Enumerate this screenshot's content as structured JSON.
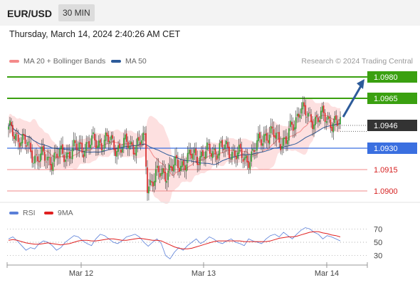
{
  "header": {
    "pair": "EUR/USD",
    "timeframe": "30 MIN"
  },
  "datetime": "Thursday, March 14, 2024 2:40:26 AM CET",
  "credit": "Research © 2024 Trading Central",
  "legend": [
    {
      "label": "MA 20 + Bollinger Bands",
      "color": "#f48a8a"
    },
    {
      "label": "MA 50",
      "color": "#2d5b9a"
    }
  ],
  "rsi_legend": [
    {
      "label": "RSI",
      "color": "#5a7fd8"
    },
    {
      "label": "9MA",
      "color": "#e02020"
    }
  ],
  "colors": {
    "up": "#2b9a2b",
    "down": "#d62020",
    "band": "#fde0e0",
    "ma20": "#f48a8a",
    "ma50": "#2d5b9a",
    "target": "#3aa010",
    "pivot": "#3a6fe0",
    "support": "#f08a8a",
    "current": "#333333",
    "arrow": "#2d5b9a"
  },
  "chart_data": [
    {
      "type": "candlestick",
      "title": "EUR/USD",
      "y_range": [
        1.0895,
        1.0984
      ],
      "x_labels": [
        "Mar 12",
        "Mar 13",
        "Mar 14"
      ],
      "levels": [
        {
          "value": 1.098,
          "label": "1.0980",
          "kind": "target"
        },
        {
          "value": 1.0965,
          "label": "1.0965",
          "kind": "target"
        },
        {
          "value": 1.0946,
          "label": "1.0946",
          "kind": "current"
        },
        {
          "value": 1.093,
          "label": "1.0930",
          "kind": "pivot"
        },
        {
          "value": 1.0915,
          "label": "1.0915",
          "kind": "support"
        },
        {
          "value": 1.09,
          "label": "1.0900",
          "kind": "support"
        }
      ],
      "anchors": [
        [
          0,
          1.0942
        ],
        [
          8,
          1.0938
        ],
        [
          18,
          1.0925
        ],
        [
          28,
          1.0922
        ],
        [
          38,
          1.0925
        ],
        [
          50,
          1.093
        ],
        [
          62,
          1.0934
        ],
        [
          72,
          1.0935
        ],
        [
          80,
          1.093
        ],
        [
          86,
          1.0933
        ],
        [
          92,
          1.0932
        ],
        [
          98,
          1.0935
        ],
        [
          100,
          1.0905
        ],
        [
          106,
          1.091
        ],
        [
          114,
          1.0914
        ],
        [
          122,
          1.0918
        ],
        [
          132,
          1.0924
        ],
        [
          142,
          1.0926
        ],
        [
          152,
          1.093
        ],
        [
          162,
          1.0928
        ],
        [
          170,
          1.0922
        ],
        [
          176,
          1.0926
        ],
        [
          184,
          1.094
        ],
        [
          192,
          1.0938
        ],
        [
          200,
          1.0935
        ],
        [
          206,
          1.0948
        ],
        [
          210,
          1.096
        ],
        [
          216,
          1.095
        ],
        [
          224,
          1.0952
        ],
        [
          232,
          1.095
        ],
        [
          238,
          1.0946
        ]
      ],
      "series": [
        {
          "name": "MA 20 + Bollinger Bands"
        },
        {
          "name": "MA 50"
        }
      ]
    },
    {
      "type": "line",
      "title": "RSI",
      "y_range": [
        20,
        80
      ],
      "y_ticks": [
        70,
        50,
        30
      ],
      "series": [
        {
          "name": "RSI",
          "values": [
            55,
            58,
            52,
            45,
            38,
            42,
            40,
            48,
            52,
            50,
            45,
            38,
            42,
            50,
            55,
            60,
            58,
            52,
            48,
            45,
            55,
            62,
            60,
            55,
            50,
            48,
            52,
            58,
            60,
            62,
            58,
            50,
            44,
            50,
            55,
            48,
            30,
            25,
            35,
            42,
            38,
            45,
            50,
            55,
            48,
            52,
            58,
            55,
            50,
            48,
            52,
            55,
            50,
            48,
            45,
            55,
            52,
            50,
            48,
            55,
            60,
            62,
            58,
            65,
            60,
            55,
            62,
            68,
            72,
            70,
            65,
            62,
            55,
            60,
            58,
            55,
            52
          ]
        },
        {
          "name": "9MA",
          "values": [
            53,
            54,
            53,
            51,
            49,
            48,
            47,
            47,
            48,
            49,
            48,
            47,
            46,
            47,
            48,
            50,
            52,
            53,
            53,
            52,
            52,
            53,
            54,
            55,
            55,
            54,
            53,
            53,
            54,
            55,
            56,
            55,
            54,
            53,
            53,
            52,
            49,
            46,
            43,
            41,
            40,
            40,
            41,
            43,
            45,
            47,
            49,
            51,
            52,
            52,
            52,
            52,
            52,
            52,
            51,
            51,
            51,
            51,
            51,
            51,
            52,
            54,
            56,
            57,
            58,
            58,
            59,
            61,
            63,
            65,
            66,
            66,
            64,
            63,
            61,
            60,
            58
          ]
        }
      ]
    }
  ]
}
